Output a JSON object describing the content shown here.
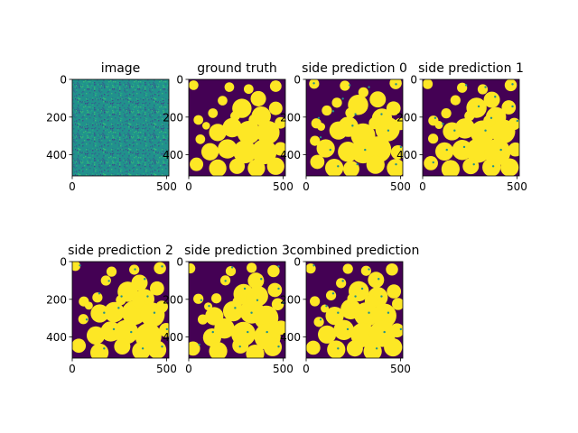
{
  "figure": {
    "layout": {
      "rows": 2,
      "cols": 4
    },
    "colormap": "viridis",
    "colors": {
      "low": "#440154",
      "mid": "#21918c",
      "high": "#fde725"
    }
  },
  "chart_data": [
    {
      "type": "heatmap",
      "kind": "noise",
      "title": "image",
      "xlim": [
        0,
        512
      ],
      "ylim": [
        512,
        0
      ],
      "xticks": [
        0,
        500
      ],
      "yticks": [
        0,
        200,
        400
      ]
    },
    {
      "type": "heatmap",
      "kind": "mask",
      "title": "ground truth",
      "xlim": [
        0,
        512
      ],
      "ylim": [
        512,
        0
      ],
      "xticks": [
        0,
        500
      ],
      "yticks": [
        0,
        200,
        400
      ]
    },
    {
      "type": "heatmap",
      "kind": "pred",
      "title": "side prediction 0",
      "xlim": [
        0,
        512
      ],
      "ylim": [
        512,
        0
      ],
      "xticks": [
        0,
        500
      ],
      "yticks": [
        0,
        200,
        400
      ]
    },
    {
      "type": "heatmap",
      "kind": "pred",
      "title": "side prediction 1",
      "xlim": [
        0,
        512
      ],
      "ylim": [
        512,
        0
      ],
      "xticks": [
        0,
        500
      ],
      "yticks": [
        0,
        200,
        400
      ]
    },
    {
      "type": "heatmap",
      "kind": "pred",
      "title": "side prediction 2",
      "xlim": [
        0,
        512
      ],
      "ylim": [
        512,
        0
      ],
      "xticks": [
        0,
        500
      ],
      "yticks": [
        0,
        200,
        400
      ]
    },
    {
      "type": "heatmap",
      "kind": "pred",
      "title": "side prediction 3",
      "xlim": [
        0,
        512
      ],
      "ylim": [
        512,
        0
      ],
      "xticks": [
        0,
        500
      ],
      "yticks": [
        0,
        200,
        400
      ]
    },
    {
      "type": "heatmap",
      "kind": "pred",
      "title": "combined prediction",
      "xlim": [
        0,
        512
      ],
      "ylim": [
        512,
        0
      ],
      "xticks": [
        0,
        500
      ],
      "yticks": [
        0,
        200,
        400
      ]
    }
  ]
}
